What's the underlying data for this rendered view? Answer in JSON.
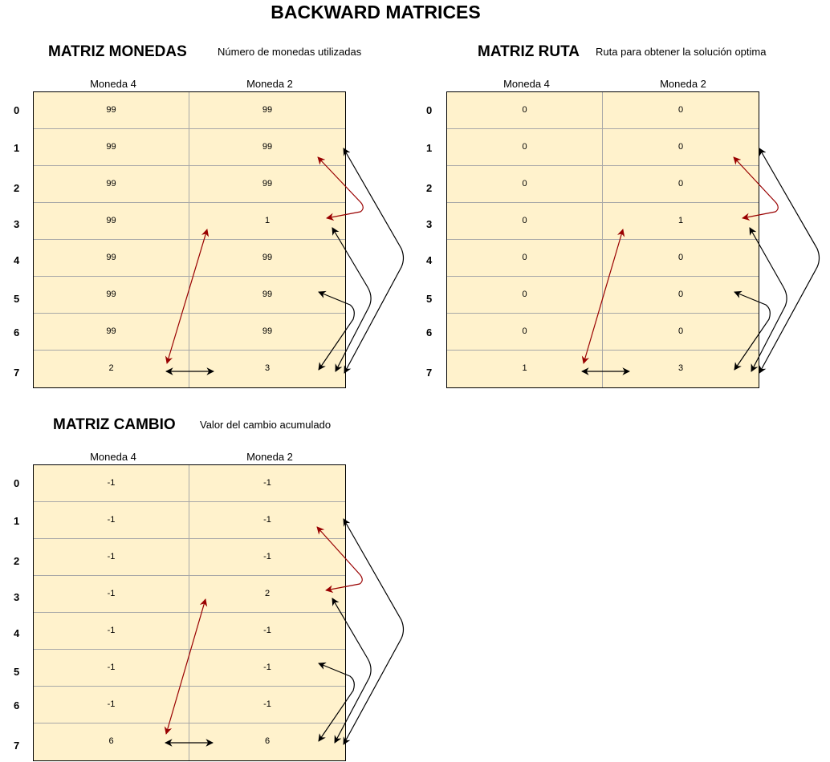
{
  "title": "BACKWARD MATRICES",
  "matrices": [
    {
      "id": "monedas",
      "title": "MATRIZ MONEDAS",
      "subtitle": "Número de monedas utilizadas",
      "columns": [
        "Moneda 4",
        "Moneda 2"
      ],
      "rows": [
        "0",
        "1",
        "2",
        "3",
        "4",
        "5",
        "6",
        "7"
      ],
      "cells": [
        [
          "99",
          "99"
        ],
        [
          "99",
          "99"
        ],
        [
          "99",
          "99"
        ],
        [
          "99",
          "1"
        ],
        [
          "99",
          "99"
        ],
        [
          "99",
          "99"
        ],
        [
          "99",
          "99"
        ],
        [
          "2",
          "3"
        ]
      ]
    },
    {
      "id": "ruta",
      "title": "MATRIZ RUTA",
      "subtitle": "Ruta para obtener la solución optima",
      "columns": [
        "Moneda 4",
        "Moneda 2"
      ],
      "rows": [
        "0",
        "1",
        "2",
        "3",
        "4",
        "5",
        "6",
        "7"
      ],
      "cells": [
        [
          "0",
          "0"
        ],
        [
          "0",
          "0"
        ],
        [
          "0",
          "0"
        ],
        [
          "0",
          "1"
        ],
        [
          "0",
          "0"
        ],
        [
          "0",
          "0"
        ],
        [
          "0",
          "0"
        ],
        [
          "1",
          "3"
        ]
      ]
    },
    {
      "id": "cambio",
      "title": "MATRIZ CAMBIO",
      "subtitle": "Valor del cambio acumulado",
      "columns": [
        "Moneda 4",
        "Moneda 2"
      ],
      "rows": [
        "0",
        "1",
        "2",
        "3",
        "4",
        "5",
        "6",
        "7"
      ],
      "cells": [
        [
          "-1",
          "-1"
        ],
        [
          "-1",
          "-1"
        ],
        [
          "-1",
          "-1"
        ],
        [
          "-1",
          "2"
        ],
        [
          "-1",
          "-1"
        ],
        [
          "-1",
          "-1"
        ],
        [
          "-1",
          "-1"
        ],
        [
          "6",
          "6"
        ]
      ]
    }
  ],
  "colors": {
    "cell_fill": "#fff2cc",
    "black_arrow": "#000000",
    "red_arrow": "#990000"
  }
}
